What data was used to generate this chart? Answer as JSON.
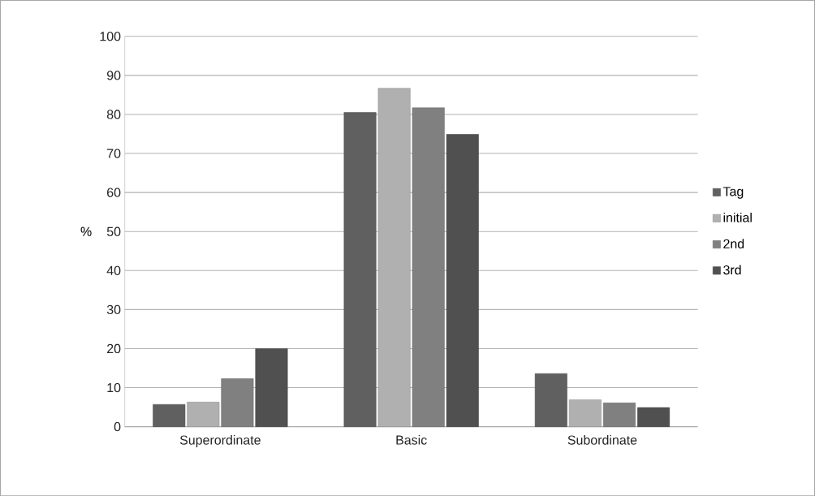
{
  "chart_data": {
    "type": "bar",
    "ylabel": "%",
    "categories": [
      "Superordinate",
      "Basic",
      "Subordinate"
    ],
    "series": [
      {
        "name": "Tag",
        "color": "#606060",
        "values": [
          5.7,
          80.5,
          13.6
        ]
      },
      {
        "name": "initial",
        "color": "#b0b0b0",
        "values": [
          6.3,
          86.7,
          6.9
        ]
      },
      {
        "name": "2nd",
        "color": "#808080",
        "values": [
          12.3,
          81.7,
          6.1
        ]
      },
      {
        "name": "3rd",
        "color": "#505050",
        "values": [
          20,
          74.9,
          4.9
        ]
      }
    ],
    "ylim": [
      0,
      100
    ],
    "yticks": [
      0,
      10,
      20,
      30,
      40,
      50,
      60,
      70,
      80,
      90,
      100
    ],
    "grid": "y",
    "legend": "right"
  }
}
